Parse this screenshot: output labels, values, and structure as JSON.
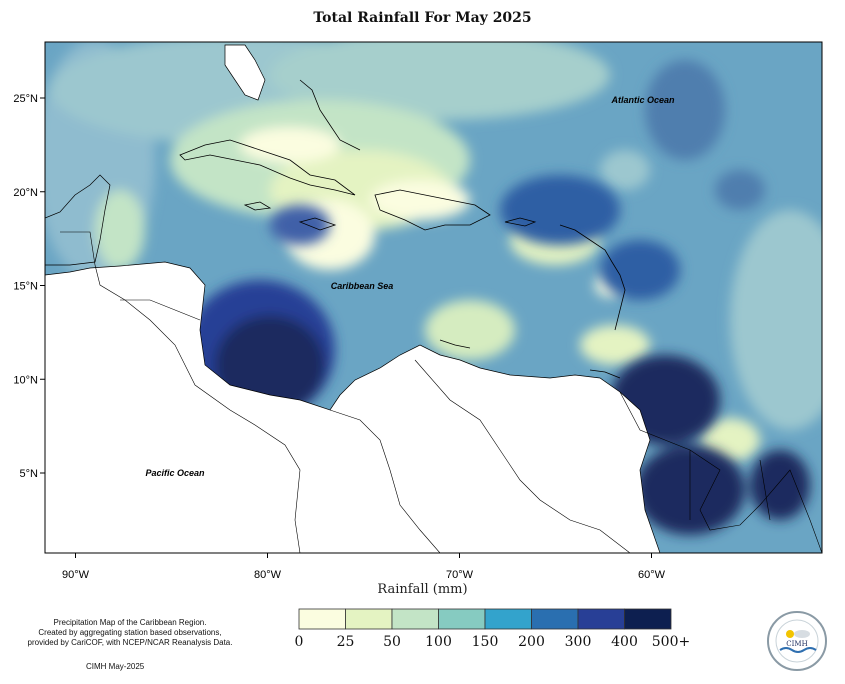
{
  "title": "Total Rainfall For May 2025",
  "axis": {
    "xlabel": "Rainfall (mm)",
    "lon_ticks": [
      {
        "lon": -90,
        "label": "90°W"
      },
      {
        "lon": -80,
        "label": "80°W"
      },
      {
        "lon": -70,
        "label": "70°W"
      },
      {
        "lon": -60,
        "label": "60°W"
      }
    ],
    "lat_ticks": [
      {
        "lat": 25,
        "label": "25°N"
      },
      {
        "lat": 20,
        "label": "20°N"
      },
      {
        "lat": 15,
        "label": "15°N"
      },
      {
        "lat": 10,
        "label": "10°N"
      },
      {
        "lat": 5,
        "label": "5°N"
      }
    ]
  },
  "map_labels": {
    "atlantic": "Atlantic Ocean",
    "caribbean": "Caribbean Sea",
    "pacific": "Pacific Ocean"
  },
  "legend": {
    "bins": [
      {
        "label": "0",
        "color": "#fbfde0"
      },
      {
        "label": "25",
        "color": "#e4f3c2"
      },
      {
        "label": "50",
        "color": "#c3e4c6"
      },
      {
        "label": "100",
        "color": "#86cbc1"
      },
      {
        "label": "150",
        "color": "#33a3cc"
      },
      {
        "label": "200",
        "color": "#2a6fb0"
      },
      {
        "label": "300",
        "color": "#283f96"
      },
      {
        "label": "400",
        "color": "#232f78"
      },
      {
        "label": "500+",
        "color": ""
      }
    ],
    "end_color": "#0d1f50"
  },
  "credits": {
    "line1": "Precipitation Map of the Caribbean Region.",
    "line2": "Created by aggregating station based observations,",
    "line3": "provided by CariCOF, with NCEP/NCAR Reanalysis Data.",
    "stamp": "CIMH May-2025"
  },
  "logo": {
    "text": "CIMH"
  },
  "colors": {
    "ocean_base": "#6aa5c4",
    "land": "#ffffff",
    "coast": "#000000"
  }
}
